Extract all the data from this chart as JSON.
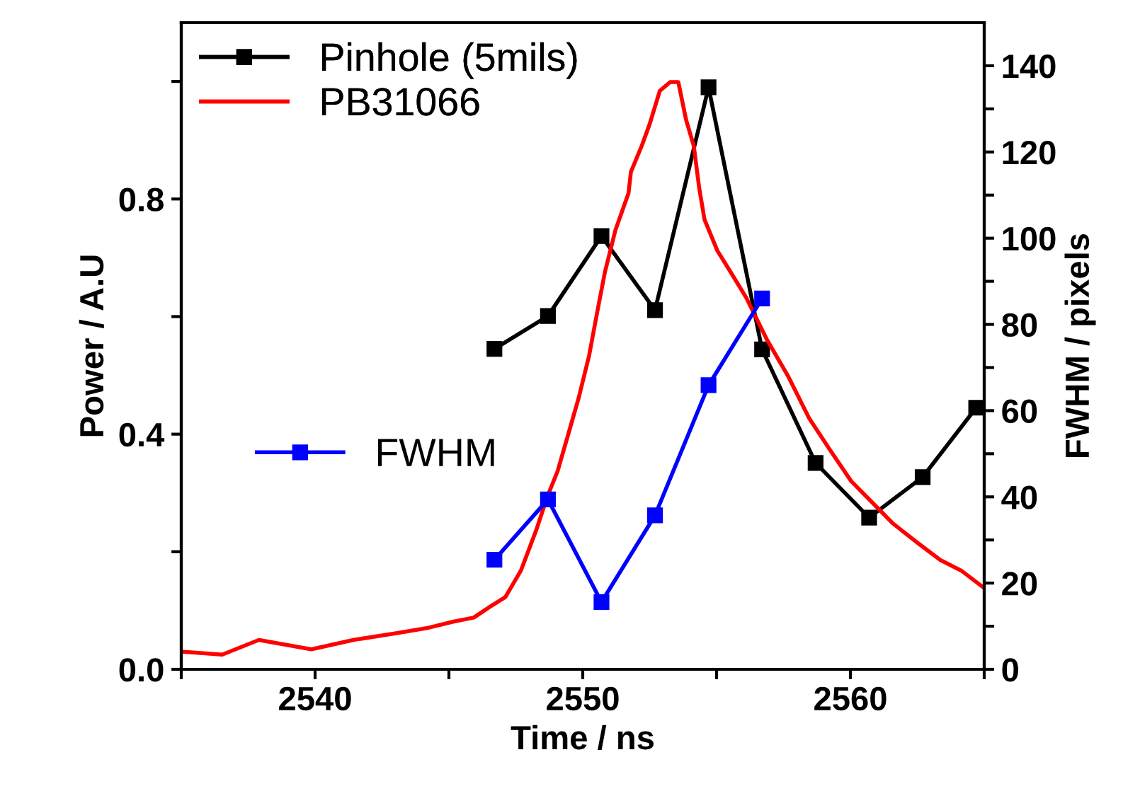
{
  "chart_data": {
    "type": "line",
    "xlabel": "Time / ns",
    "ylabel": "Power / A.U",
    "y2label": "FWHM / pixels",
    "xlim": [
      2535,
      2565
    ],
    "xticks": [
      {
        "value": 2535,
        "label": null
      },
      2540,
      {
        "value": 2545,
        "label": null
      },
      2550,
      {
        "value": 2555,
        "label": null
      },
      2560,
      {
        "value": 2565,
        "label": null
      }
    ],
    "ylim": [
      0,
      1.1
    ],
    "yticks": [
      {
        "value": 0,
        "label": "0.0"
      },
      {
        "value": 0.2,
        "label": null
      },
      {
        "value": 0.4,
        "label": "0.4"
      },
      {
        "value": 0.6,
        "label": null
      },
      {
        "value": 0.8,
        "label": "0.8"
      },
      {
        "value": 1.0,
        "label": null
      }
    ],
    "y2lim": [
      0,
      150
    ],
    "y2ticks": [
      0,
      {
        "value": 10,
        "label": null
      },
      20,
      {
        "value": 30,
        "label": null
      },
      40,
      {
        "value": 50,
        "label": null
      },
      60,
      {
        "value": 70,
        "label": null
      },
      80,
      {
        "value": 90,
        "label": null
      },
      100,
      {
        "value": 110,
        "label": null
      },
      120,
      {
        "value": 130,
        "label": null
      },
      140
    ],
    "legend": "top left",
    "grid": false,
    "series": [
      {
        "name": "Pinhole (5mils)",
        "color": "#000000",
        "marker": "square",
        "x": [
          2546.7,
          2548.7,
          2550.7,
          2552.7,
          2554.7,
          2556.7,
          2558.7,
          2560.7,
          2562.7,
          2564.7
        ],
        "values": [
          0.545,
          0.601,
          0.737,
          0.611,
          0.99,
          0.544,
          0.351,
          0.258,
          0.327,
          0.445
        ]
      },
      {
        "name": "PB31066",
        "color": "#ff0000",
        "marker": "none",
        "x": [
          2535.0,
          2536.53,
          2537.9,
          2539.86,
          2541.43,
          2542.99,
          2544.17,
          2545.15,
          2545.93,
          2546.52,
          2547.11,
          2547.69,
          2548.28,
          2548.67,
          2549.06,
          2549.46,
          2549.85,
          2550.24,
          2550.53,
          2550.83,
          2551.22,
          2551.71,
          2551.8,
          2552.2,
          2552.49,
          2552.88,
          2553.27,
          2553.57,
          2553.86,
          2554.15,
          2554.35,
          2554.55,
          2555.03,
          2555.52,
          2556.11,
          2556.89,
          2557.68,
          2558.46,
          2559.24,
          2560.03,
          2560.81,
          2561.59,
          2562.57,
          2563.36,
          2564.14,
          2564.92
        ],
        "values": [
          0.03,
          0.025,
          0.05,
          0.034,
          0.05,
          0.061,
          0.07,
          0.081,
          0.088,
          0.106,
          0.123,
          0.168,
          0.239,
          0.293,
          0.337,
          0.4,
          0.462,
          0.534,
          0.605,
          0.676,
          0.747,
          0.81,
          0.846,
          0.89,
          0.926,
          0.984,
          0.999,
          0.999,
          0.935,
          0.89,
          0.819,
          0.765,
          0.712,
          0.676,
          0.632,
          0.56,
          0.498,
          0.427,
          0.373,
          0.32,
          0.284,
          0.248,
          0.213,
          0.186,
          0.168,
          0.141
        ]
      },
      {
        "name": "FWHM",
        "color": "#0000ff",
        "marker": "square",
        "axis": "y2",
        "x": [
          2546.7,
          2548.7,
          2550.7,
          2552.7,
          2554.7,
          2556.7
        ],
        "values": [
          25.4,
          39.4,
          15.6,
          35.7,
          65.9,
          86.0
        ]
      }
    ]
  }
}
